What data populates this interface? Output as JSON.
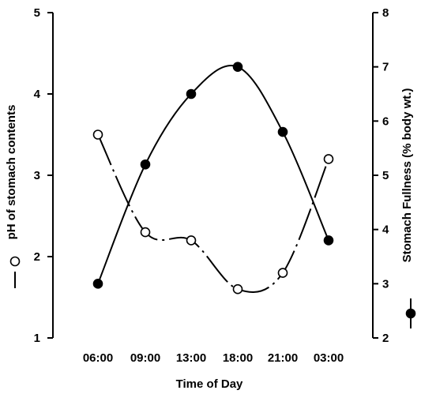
{
  "chart_data": {
    "type": "line",
    "title": "",
    "xlabel": "Time of Day",
    "ylabel_left": "pH of stomach contents",
    "ylabel_right": "Stomach Fullness (% body wt.)",
    "categories": [
      "06:00",
      "09:00",
      "13:00",
      "18:00",
      "21:00",
      "03:00"
    ],
    "y_left": {
      "lim": [
        1,
        5
      ],
      "ticks": [
        1,
        2,
        3,
        4,
        5
      ]
    },
    "y_right": {
      "lim": [
        2,
        8
      ],
      "ticks": [
        2,
        3,
        4,
        5,
        6,
        7,
        8
      ]
    },
    "grid": false,
    "legend": "none",
    "series": [
      {
        "axis": "left",
        "marker": "open-circle",
        "line_style": "dash-dot",
        "values": [
          3.5,
          2.3,
          2.2,
          1.6,
          1.8,
          3.2
        ]
      },
      {
        "axis": "right",
        "marker": "filled-circle",
        "line_style": "solid",
        "values": [
          3.0,
          5.2,
          6.5,
          7.0,
          5.8,
          3.8
        ]
      }
    ]
  }
}
